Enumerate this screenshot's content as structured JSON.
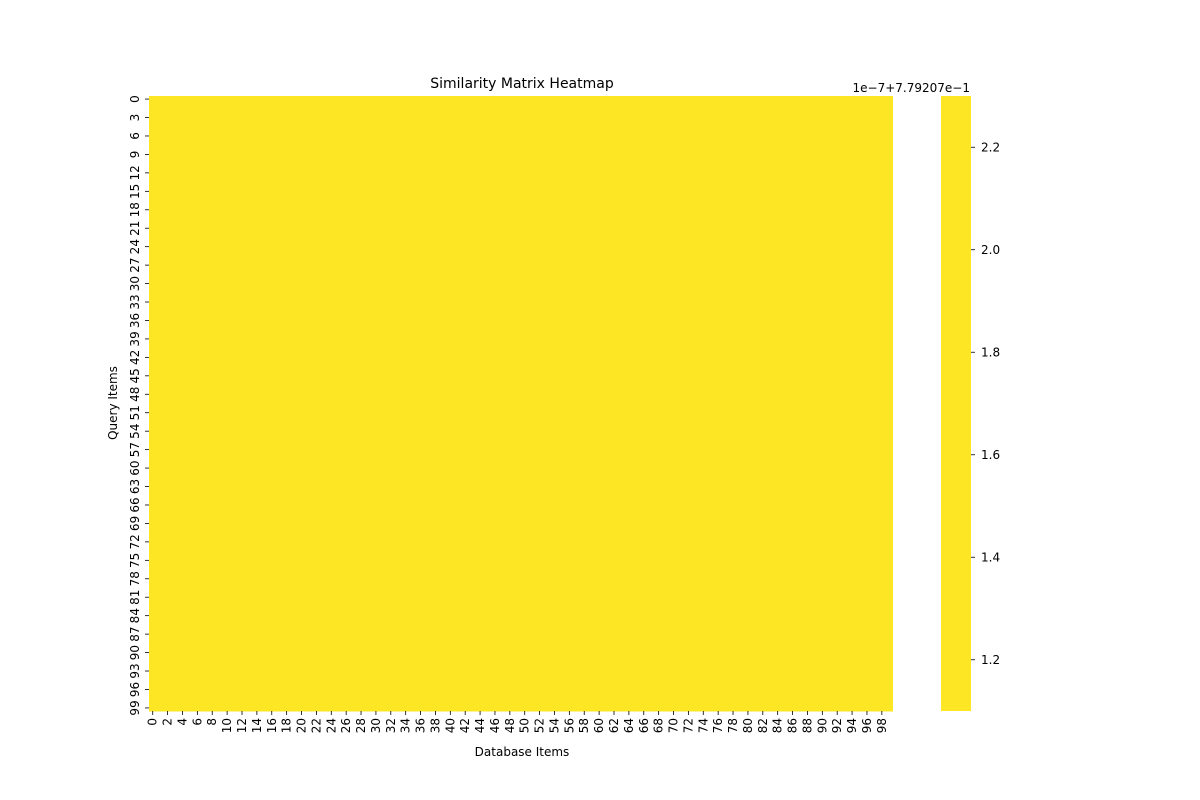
{
  "chart_data": {
    "type": "heatmap",
    "title": "Similarity Matrix Heatmap",
    "xlabel": "Database Items",
    "ylabel": "Query Items",
    "n_rows": 100,
    "n_cols": 100,
    "x_tick_labels": [
      "0",
      "2",
      "4",
      "6",
      "8",
      "10",
      "12",
      "14",
      "16",
      "18",
      "20",
      "22",
      "24",
      "26",
      "28",
      "30",
      "32",
      "34",
      "36",
      "38",
      "40",
      "42",
      "44",
      "46",
      "48",
      "50",
      "52",
      "54",
      "56",
      "58",
      "60",
      "62",
      "64",
      "66",
      "68",
      "70",
      "72",
      "74",
      "76",
      "78",
      "80",
      "82",
      "84",
      "86",
      "88",
      "90",
      "92",
      "94",
      "96",
      "98"
    ],
    "y_tick_labels": [
      "0",
      "3",
      "6",
      "9",
      "12",
      "15",
      "18",
      "21",
      "24",
      "27",
      "30",
      "33",
      "36",
      "39",
      "42",
      "45",
      "48",
      "51",
      "54",
      "57",
      "60",
      "63",
      "66",
      "69",
      "72",
      "75",
      "78",
      "81",
      "84",
      "87",
      "90",
      "93",
      "96",
      "99"
    ],
    "value": 0.7792073,
    "uniform_color": "#fde725",
    "colorbar": {
      "offset_label": "1e−7+7.79207e−1",
      "ticks": [
        "1.2",
        "1.4",
        "1.6",
        "1.8",
        "2.0",
        "2.2"
      ],
      "tick_values": [
        1.2,
        1.4,
        1.6,
        1.8,
        2.0,
        2.2
      ],
      "range": [
        1.1,
        2.3
      ]
    }
  }
}
